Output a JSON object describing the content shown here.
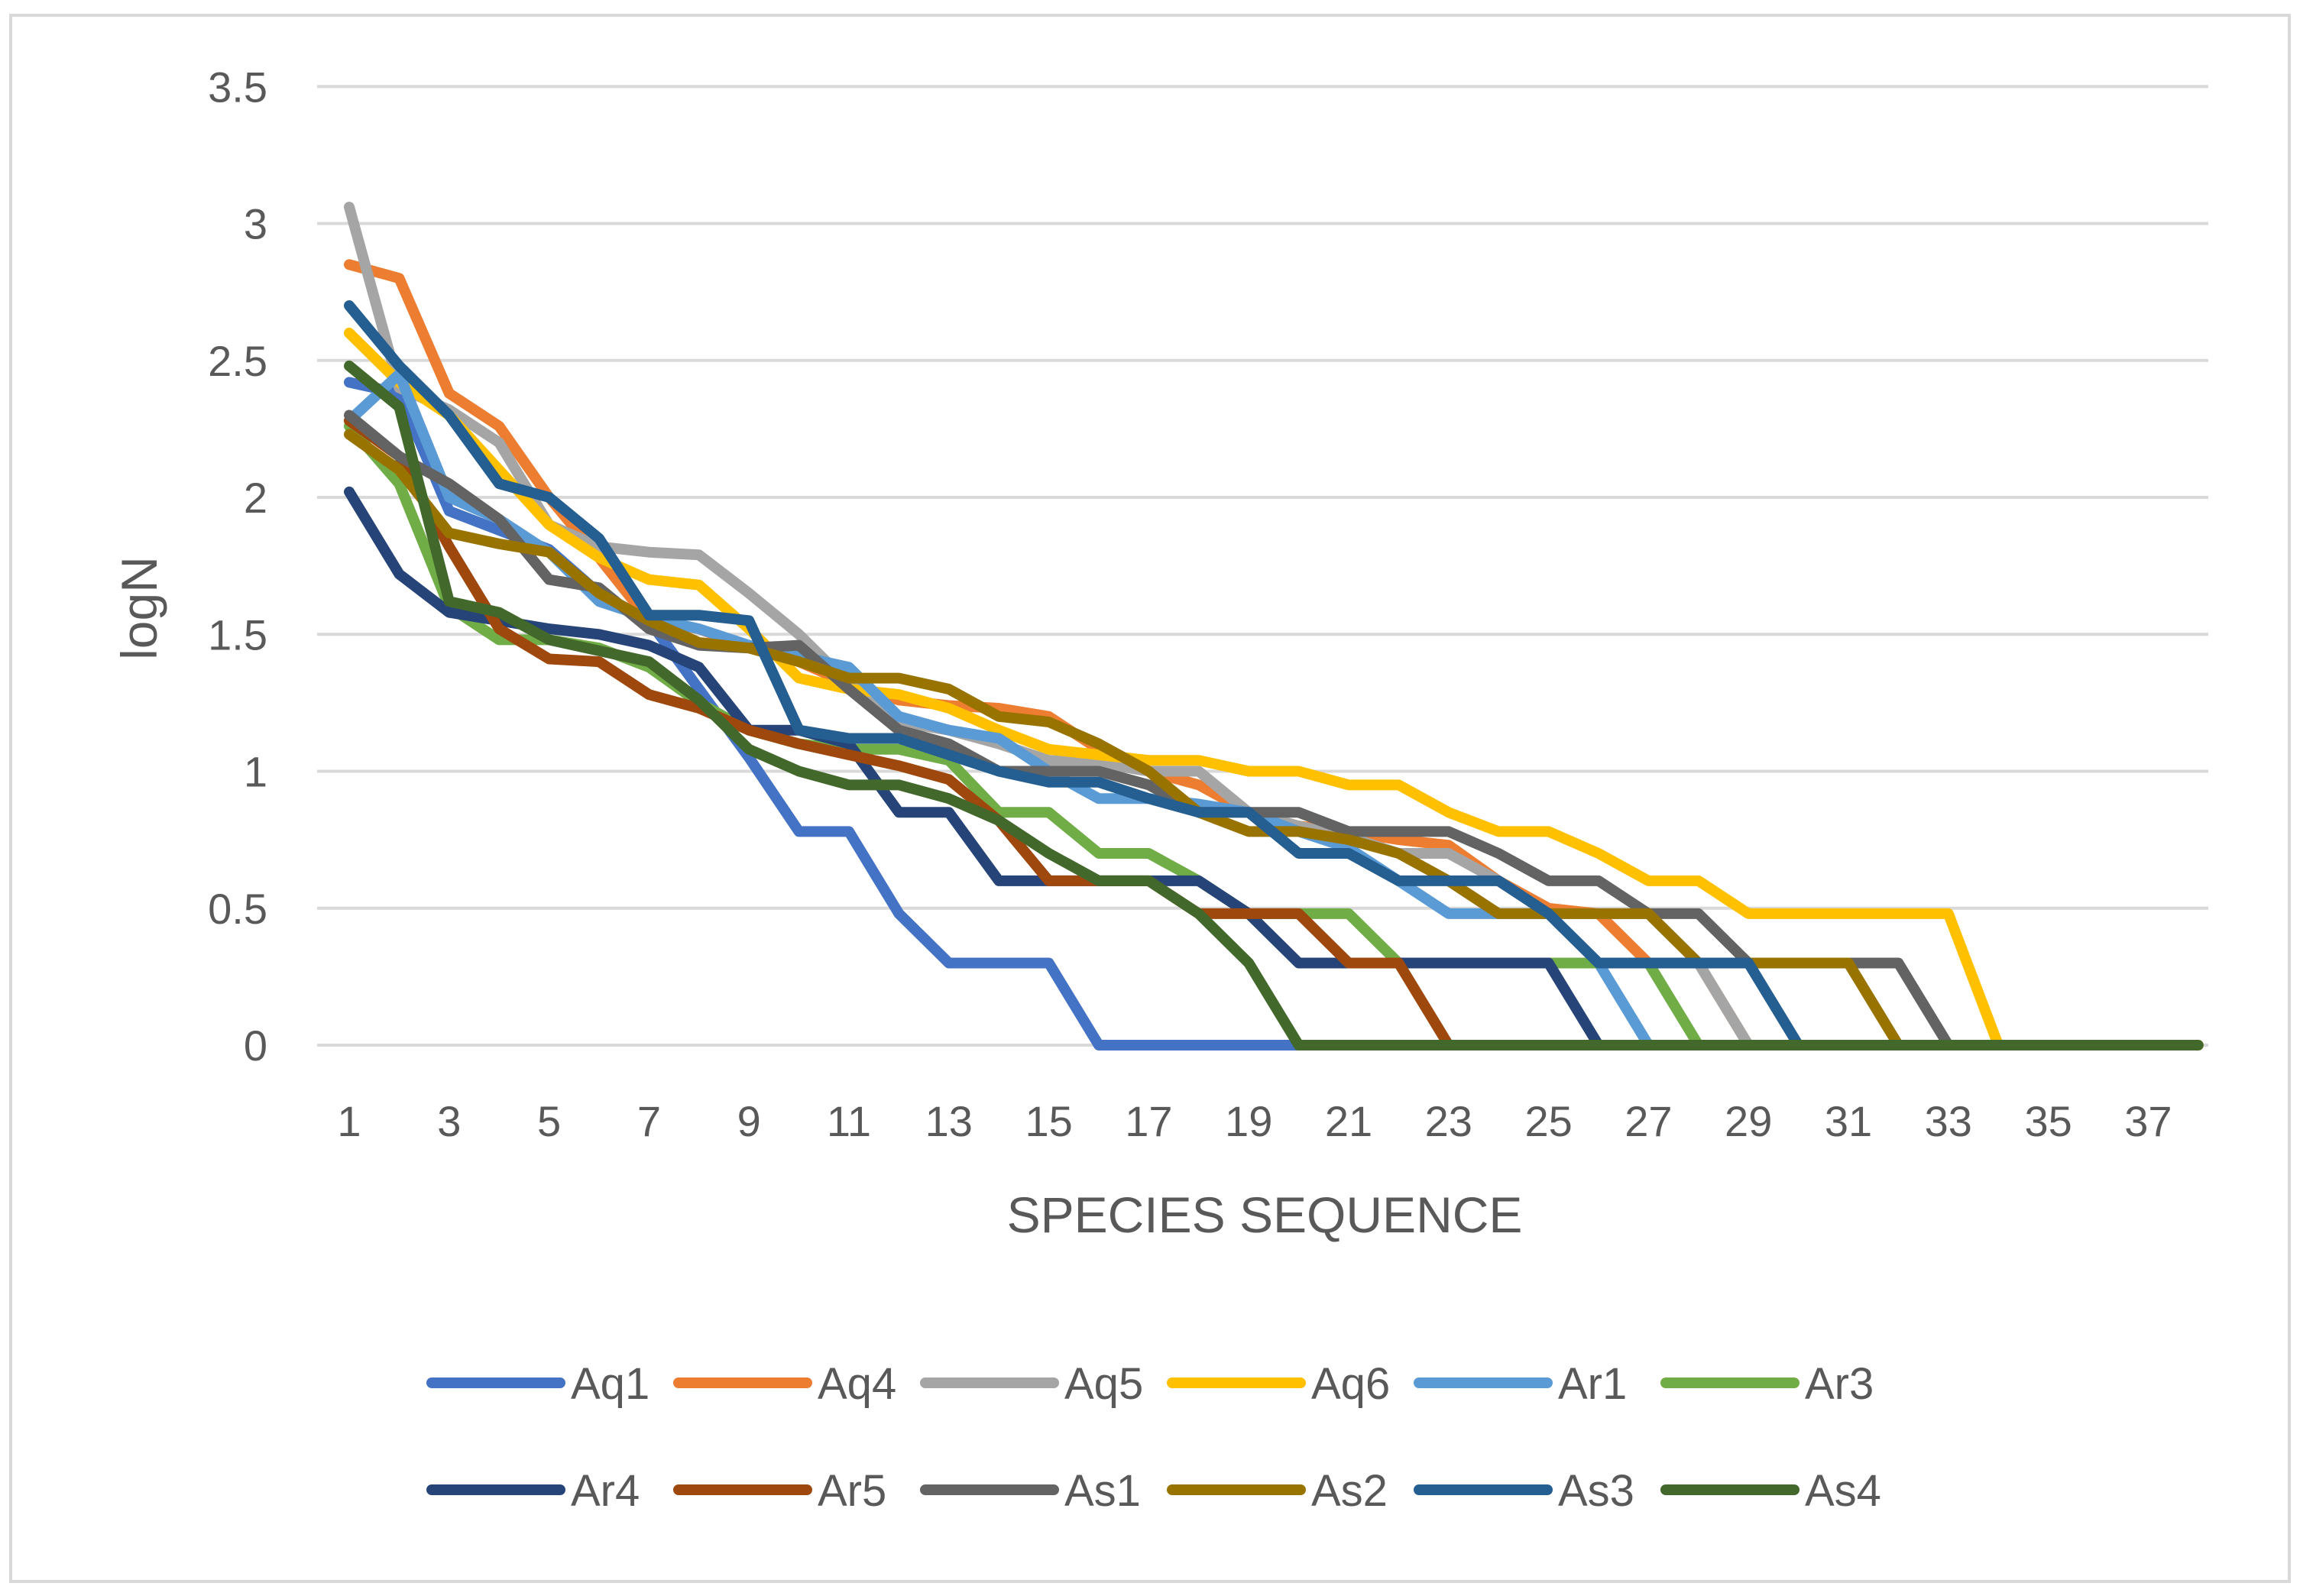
{
  "chart_data": {
    "type": "line",
    "title": "",
    "xlabel": "SPECIES SEQUENCE",
    "ylabel": "logN",
    "ylim": [
      0,
      3.5
    ],
    "yticks": [
      "0",
      "0.5",
      "1",
      "1.5",
      "2",
      "2.5",
      "3",
      "3.5"
    ],
    "xticks": [
      "1",
      "3",
      "5",
      "7",
      "9",
      "11",
      "13",
      "15",
      "17",
      "19",
      "21",
      "23",
      "25",
      "27",
      "29",
      "31",
      "33",
      "35",
      "37"
    ],
    "grid": true,
    "legend_position": "bottom",
    "series": [
      {
        "name": "Aq1",
        "color": "#4472C4",
        "values": [
          2.42,
          2.38,
          1.95,
          1.88,
          1.81,
          1.65,
          1.55,
          1.3,
          1.05,
          0.78,
          0.78,
          0.48,
          0.3,
          0.3,
          0.3,
          0,
          0,
          0,
          0,
          0
        ]
      },
      {
        "name": "Aq4",
        "color": "#ED7D31",
        "values": [
          2.85,
          2.8,
          2.38,
          2.26,
          2.0,
          1.78,
          1.55,
          1.52,
          1.45,
          1.4,
          1.32,
          1.26,
          1.24,
          1.23,
          1.2,
          1.08,
          1.0,
          0.95,
          0.85,
          0.8,
          0.78,
          0.75,
          0.73,
          0.6,
          0.5,
          0.48,
          0.3,
          0.3,
          0.0
        ]
      },
      {
        "name": "Aq5",
        "color": "#A5A5A5",
        "values": [
          3.06,
          2.4,
          2.32,
          2.2,
          1.9,
          1.82,
          1.8,
          1.79,
          1.65,
          1.5,
          1.32,
          1.18,
          1.15,
          1.1,
          1.04,
          1.03,
          1.0,
          1.0,
          0.85,
          0.8,
          0.76,
          0.7,
          0.7,
          0.6,
          0.48,
          0.48,
          0.48,
          0.3,
          0.0
        ]
      },
      {
        "name": "Aq6",
        "color": "#FFC000",
        "values": [
          2.6,
          2.42,
          2.3,
          2.1,
          1.9,
          1.78,
          1.7,
          1.68,
          1.52,
          1.34,
          1.3,
          1.28,
          1.23,
          1.15,
          1.08,
          1.06,
          1.04,
          1.04,
          1.0,
          1.0,
          0.95,
          0.95,
          0.85,
          0.78,
          0.78,
          0.7,
          0.6,
          0.6,
          0.48,
          0.48,
          0.48,
          0.48,
          0.48,
          0.0,
          0,
          0,
          0,
          0
        ]
      },
      {
        "name": "Ar1",
        "color": "#5B9BD5",
        "values": [
          2.28,
          2.45,
          2.0,
          1.92,
          1.8,
          1.62,
          1.56,
          1.52,
          1.46,
          1.42,
          1.38,
          1.2,
          1.15,
          1.12,
          1.0,
          0.9,
          0.9,
          0.88,
          0.85,
          0.78,
          0.72,
          0.6,
          0.48,
          0.48,
          0.48,
          0.3,
          0.0
        ]
      },
      {
        "name": "Ar3",
        "color": "#70AD47",
        "values": [
          2.26,
          2.05,
          1.6,
          1.48,
          1.48,
          1.45,
          1.38,
          1.25,
          1.15,
          1.1,
          1.08,
          1.08,
          1.04,
          0.85,
          0.85,
          0.7,
          0.7,
          0.6,
          0.48,
          0.48,
          0.48,
          0.3,
          0.3,
          0.3,
          0.3,
          0.3,
          0.3,
          0.0
        ]
      },
      {
        "name": "Ar4",
        "color": "#264478",
        "values": [
          2.02,
          1.72,
          1.58,
          1.55,
          1.52,
          1.5,
          1.46,
          1.38,
          1.15,
          1.15,
          1.1,
          0.85,
          0.85,
          0.6,
          0.6,
          0.6,
          0.6,
          0.6,
          0.48,
          0.3,
          0.3,
          0.3,
          0.3,
          0.3,
          0.3,
          0.0
        ]
      },
      {
        "name": "Ar5",
        "color": "#9E480E",
        "values": [
          2.28,
          2.15,
          1.82,
          1.52,
          1.41,
          1.4,
          1.28,
          1.23,
          1.15,
          1.1,
          1.06,
          1.02,
          0.97,
          0.82,
          0.6,
          0.6,
          0.6,
          0.48,
          0.48,
          0.48,
          0.3,
          0.3,
          0.0
        ]
      },
      {
        "name": "As1",
        "color": "#636363",
        "values": [
          2.3,
          2.15,
          2.05,
          1.92,
          1.7,
          1.67,
          1.52,
          1.46,
          1.45,
          1.46,
          1.3,
          1.15,
          1.1,
          1.0,
          1.0,
          1.0,
          0.95,
          0.85,
          0.85,
          0.85,
          0.78,
          0.78,
          0.78,
          0.7,
          0.6,
          0.6,
          0.48,
          0.48,
          0.3,
          0.3,
          0.3,
          0.3,
          0.0
        ]
      },
      {
        "name": "As2",
        "color": "#997300",
        "values": [
          2.23,
          2.1,
          1.87,
          1.83,
          1.8,
          1.65,
          1.55,
          1.47,
          1.45,
          1.4,
          1.34,
          1.34,
          1.3,
          1.2,
          1.18,
          1.1,
          1.0,
          0.85,
          0.78,
          0.78,
          0.75,
          0.7,
          0.6,
          0.48,
          0.48,
          0.48,
          0.48,
          0.3,
          0.3,
          0.3,
          0.3,
          0.0
        ]
      },
      {
        "name": "As3",
        "color": "#255E91",
        "values": [
          2.7,
          2.48,
          2.3,
          2.05,
          2.0,
          1.85,
          1.57,
          1.57,
          1.55,
          1.15,
          1.12,
          1.12,
          1.06,
          1.0,
          0.96,
          0.96,
          0.9,
          0.85,
          0.85,
          0.7,
          0.7,
          0.6,
          0.6,
          0.6,
          0.48,
          0.3,
          0.3,
          0.3,
          0.3,
          0.0
        ]
      },
      {
        "name": "As4",
        "color": "#43682B",
        "values": [
          2.48,
          2.33,
          1.62,
          1.58,
          1.48,
          1.44,
          1.4,
          1.26,
          1.08,
          1.0,
          0.95,
          0.95,
          0.9,
          0.82,
          0.7,
          0.6,
          0.6,
          0.48,
          0.3,
          0.0,
          0,
          0,
          0,
          0,
          0,
          0,
          0,
          0,
          0,
          0,
          0,
          0,
          0,
          0,
          0,
          0,
          0,
          0
        ]
      }
    ]
  }
}
